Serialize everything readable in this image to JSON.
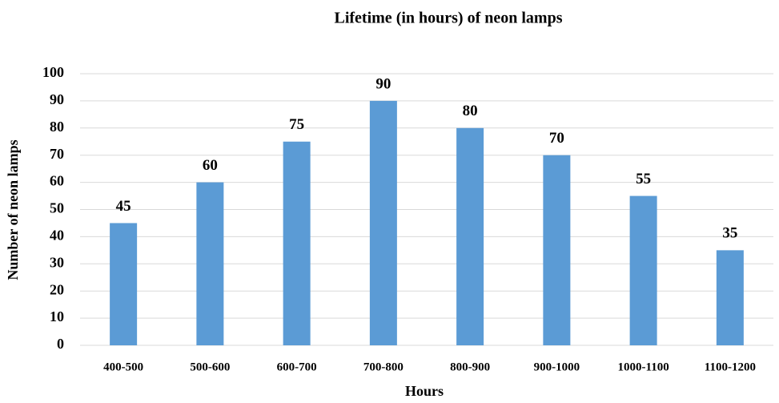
{
  "chart_data": {
    "type": "bar",
    "title": "Lifetime (in hours) of neon lamps",
    "x_label": "Hours",
    "y_label": "Number of neon lamps",
    "categories": [
      "400-500",
      "500-600",
      "600-700",
      "700-800",
      "800-900",
      "900-1000",
      "1000-1100",
      "1100-1200"
    ],
    "values": [
      45,
      60,
      75,
      90,
      80,
      70,
      55,
      35
    ],
    "color": "#5b9bd5",
    "ylim": [
      0,
      100
    ],
    "yticks": [
      0,
      10,
      20,
      30,
      40,
      50,
      60,
      70,
      80,
      90,
      100
    ],
    "grid": true
  }
}
